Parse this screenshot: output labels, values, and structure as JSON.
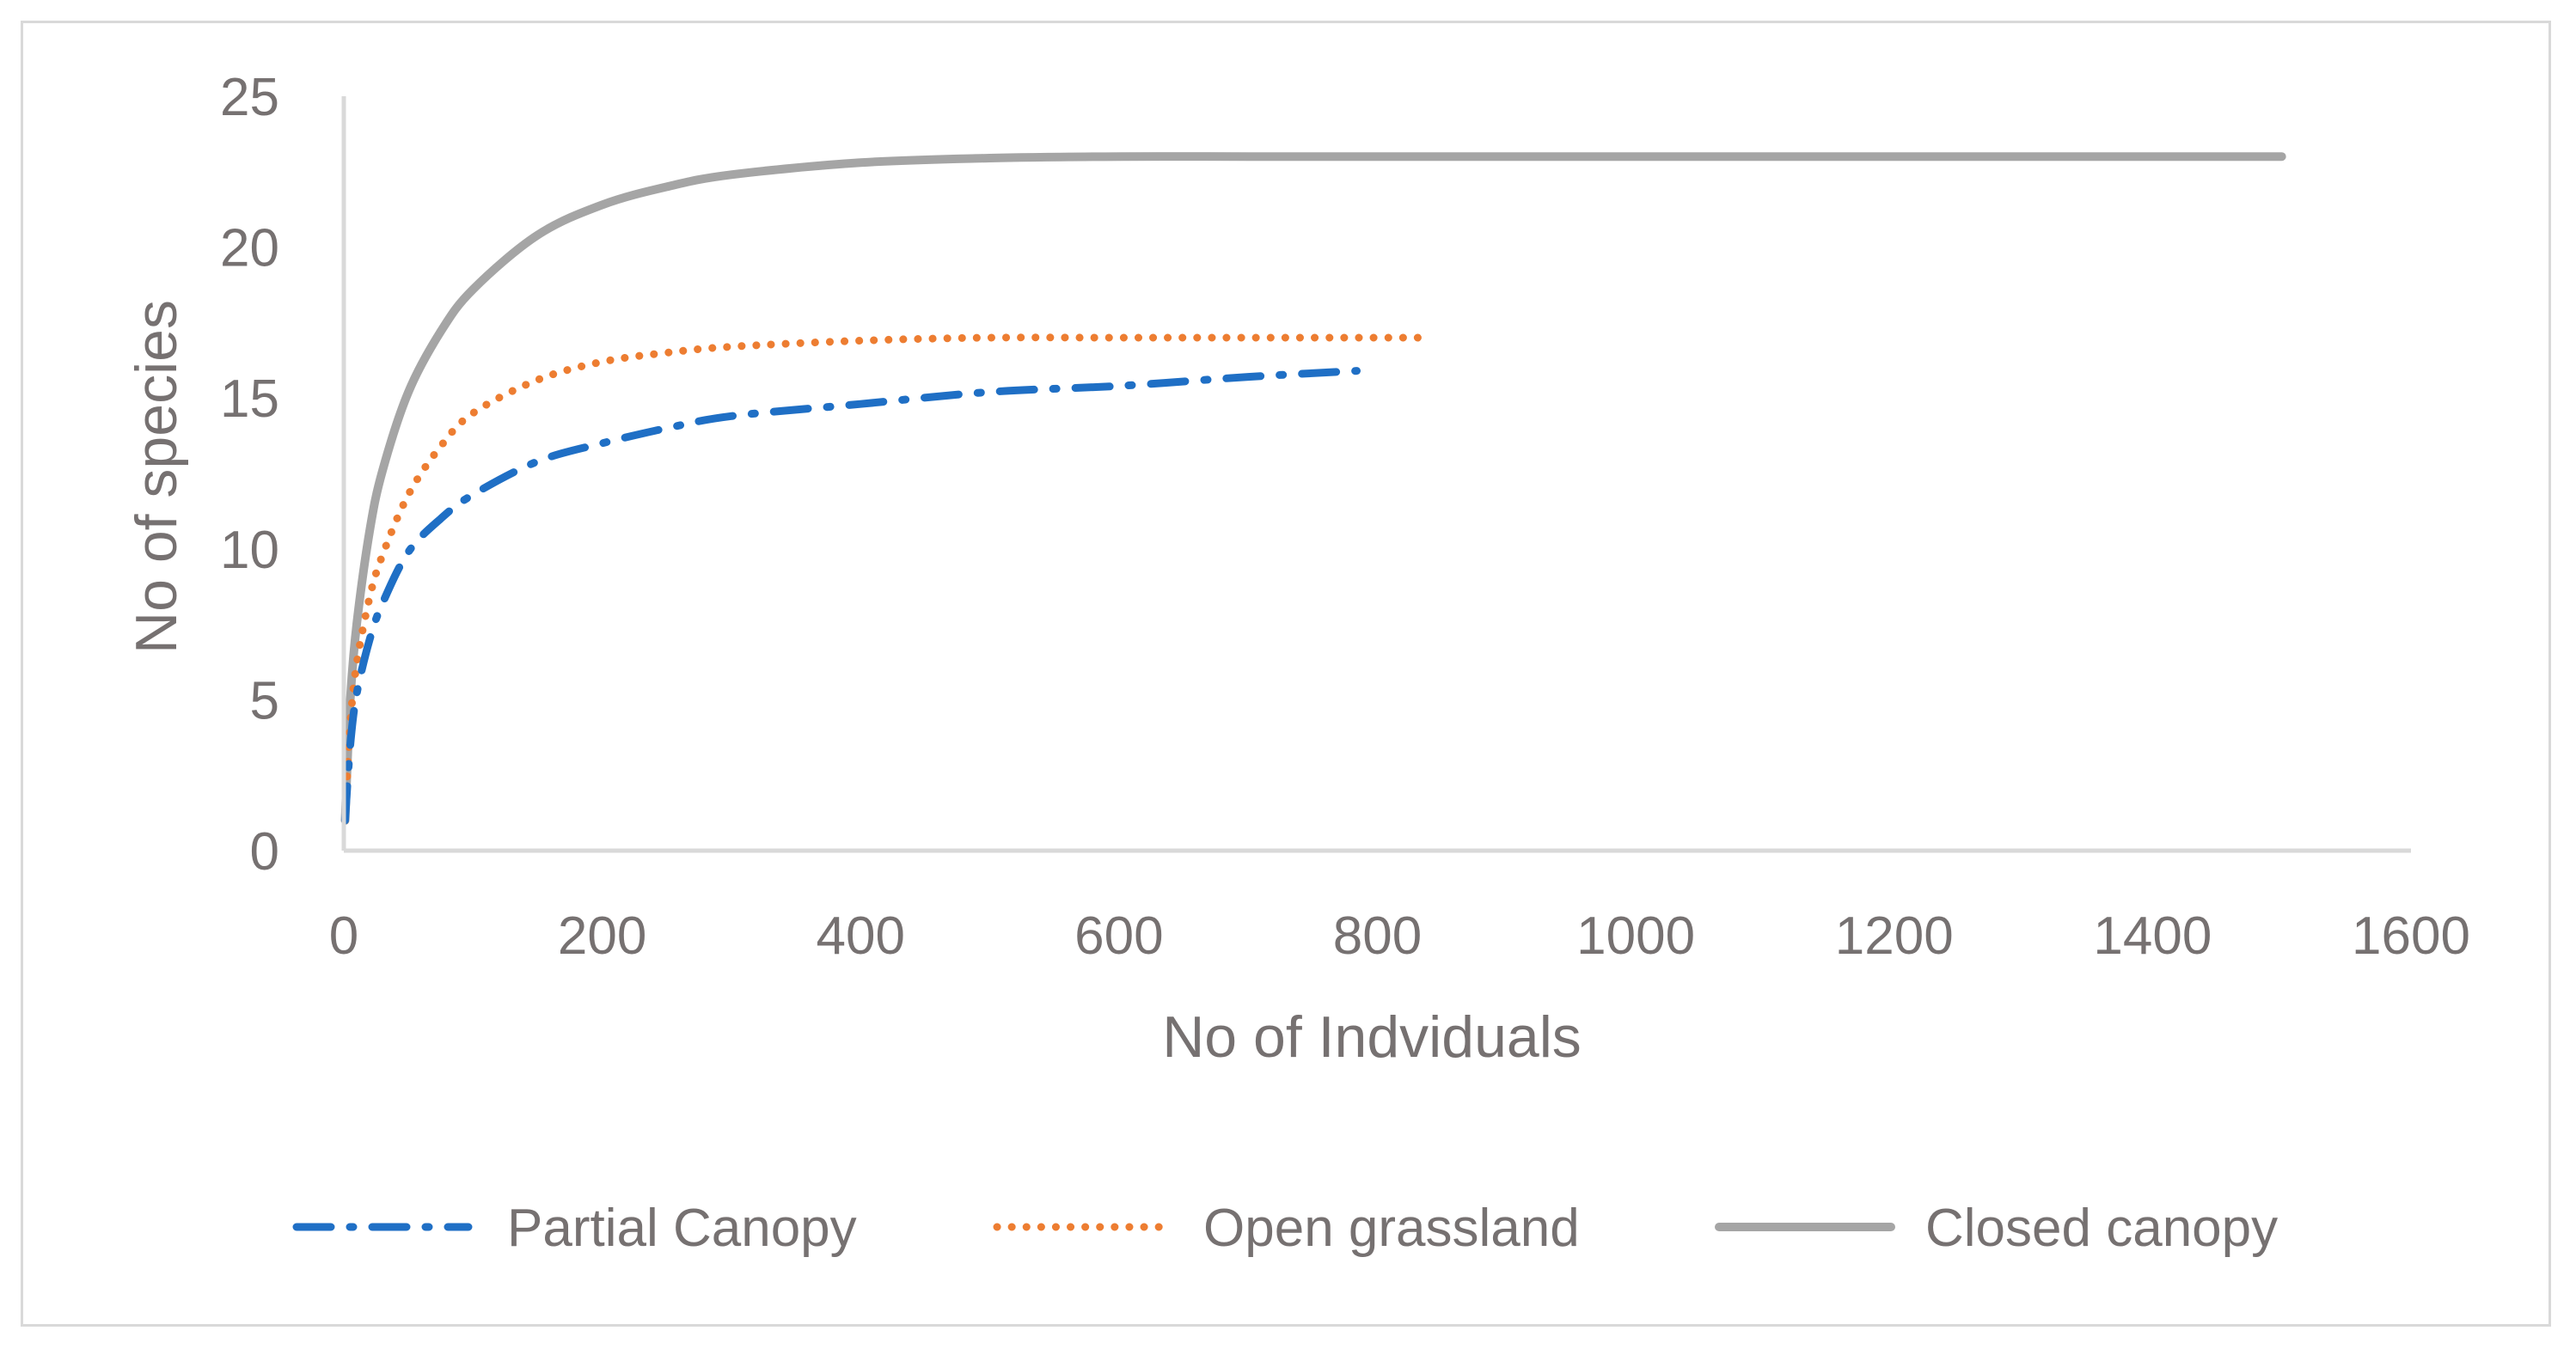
{
  "chart_data": {
    "type": "line",
    "xlabel": "No of Indviduals",
    "ylabel": "No of species",
    "xlim": [
      0,
      1600
    ],
    "ylim": [
      0,
      25
    ],
    "x_ticks": [
      "0",
      "200",
      "400",
      "600",
      "800",
      "1000",
      "1200",
      "1400",
      "1600"
    ],
    "y_ticks": [
      "0",
      "5",
      "10",
      "15",
      "20",
      "25"
    ],
    "grid": false,
    "legend_position": "bottom",
    "series": [
      {
        "name": "Partial Canopy",
        "color": "#1f6fc5",
        "style": "dash-dot",
        "x": [
          1,
          5,
          10,
          20,
          30,
          50,
          75,
          100,
          150,
          200,
          250,
          300,
          400,
          500,
          600,
          700,
          784
        ],
        "y": [
          1,
          3.5,
          5.2,
          7.0,
          8.2,
          9.9,
          11.0,
          11.8,
          12.9,
          13.5,
          14.0,
          14.4,
          14.8,
          15.2,
          15.4,
          15.7,
          15.9
        ]
      },
      {
        "name": "Open grassland",
        "color": "#ed7d31",
        "style": "dotted",
        "x": [
          1,
          5,
          10,
          20,
          30,
          50,
          75,
          100,
          150,
          200,
          250,
          300,
          400,
          500,
          600,
          700,
          840
        ],
        "y": [
          1,
          4.2,
          6.2,
          8.4,
          9.8,
          11.8,
          13.4,
          14.5,
          15.6,
          16.2,
          16.5,
          16.7,
          16.9,
          17.0,
          17.0,
          17.0,
          17.0
        ]
      },
      {
        "name": "Closed canopy",
        "color": "#a5a5a5",
        "style": "solid",
        "x": [
          1,
          5,
          10,
          20,
          30,
          50,
          75,
          100,
          150,
          200,
          250,
          300,
          400,
          500,
          600,
          700,
          800,
          1000,
          1200,
          1500
        ],
        "y": [
          1,
          5.0,
          7.5,
          10.6,
          12.6,
          15.2,
          17.2,
          18.6,
          20.4,
          21.4,
          22.0,
          22.4,
          22.8,
          22.95,
          23.0,
          23.0,
          23.0,
          23.0,
          23.0,
          23.0
        ]
      }
    ]
  }
}
